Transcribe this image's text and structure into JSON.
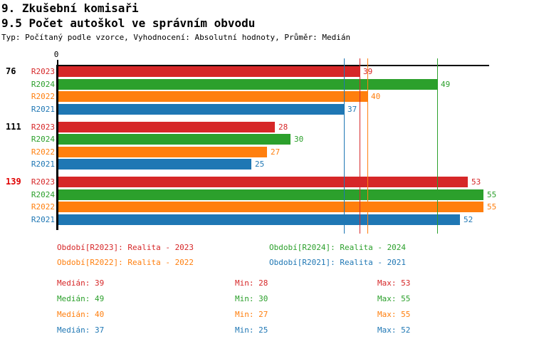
{
  "header": {
    "title": "9. Zkušební komisaři",
    "subtitle": "9.5 Počet autoškol ve správním obvodu",
    "meta": "Typ: Počítaný podle vzorce, Vyhodnocení: Absolutní hodnoty, Průměr: Medián"
  },
  "chart_data": {
    "type": "bar",
    "orientation": "horizontal",
    "title": "9.5 Počet autoškol ve správním obvodu",
    "axis": {
      "origin_label": "0",
      "min": 0,
      "max": 55.8,
      "grid": false
    },
    "categories": [
      "76",
      "111",
      "139"
    ],
    "category_label_colors": [
      "#000000",
      "#000000",
      "#e00000"
    ],
    "series": [
      {
        "name": "R2023",
        "color": "#d62728",
        "values": [
          39,
          28,
          53
        ],
        "median": 39,
        "min": 28,
        "max": 53
      },
      {
        "name": "R2024",
        "color": "#2ca02c",
        "values": [
          49,
          30,
          55
        ],
        "median": 49,
        "min": 30,
        "max": 55
      },
      {
        "name": "R2022",
        "color": "#ff7f0e",
        "values": [
          40,
          27,
          55
        ],
        "median": 40,
        "min": 27,
        "max": 55
      },
      {
        "name": "R2021",
        "color": "#1f77b4",
        "values": [
          37,
          25,
          52
        ],
        "median": 37,
        "min": 25,
        "max": 52
      }
    ],
    "median_lines_shown": true,
    "value_labels_shown": true,
    "legend_position": "bottom"
  },
  "legend": {
    "items": [
      {
        "text": "Období[R2023]: Realita - 2023",
        "color": "#d62728"
      },
      {
        "text": "Období[R2024]: Realita - 2024",
        "color": "#2ca02c"
      },
      {
        "text": "Období[R2022]: Realita - 2022",
        "color": "#ff7f0e"
      },
      {
        "text": "Období[R2021]: Realita - 2021",
        "color": "#1f77b4"
      }
    ]
  },
  "stats": {
    "rows": [
      {
        "median": "Medián: 39",
        "min": "Min: 28",
        "max": "Max: 53",
        "color": "#d62728"
      },
      {
        "median": "Medián: 49",
        "min": "Min: 30",
        "max": "Max: 55",
        "color": "#2ca02c"
      },
      {
        "median": "Medián: 40",
        "min": "Min: 27",
        "max": "Max: 55",
        "color": "#ff7f0e"
      },
      {
        "median": "Medián: 37",
        "min": "Min: 25",
        "max": "Max: 52",
        "color": "#1f77b4"
      }
    ]
  }
}
